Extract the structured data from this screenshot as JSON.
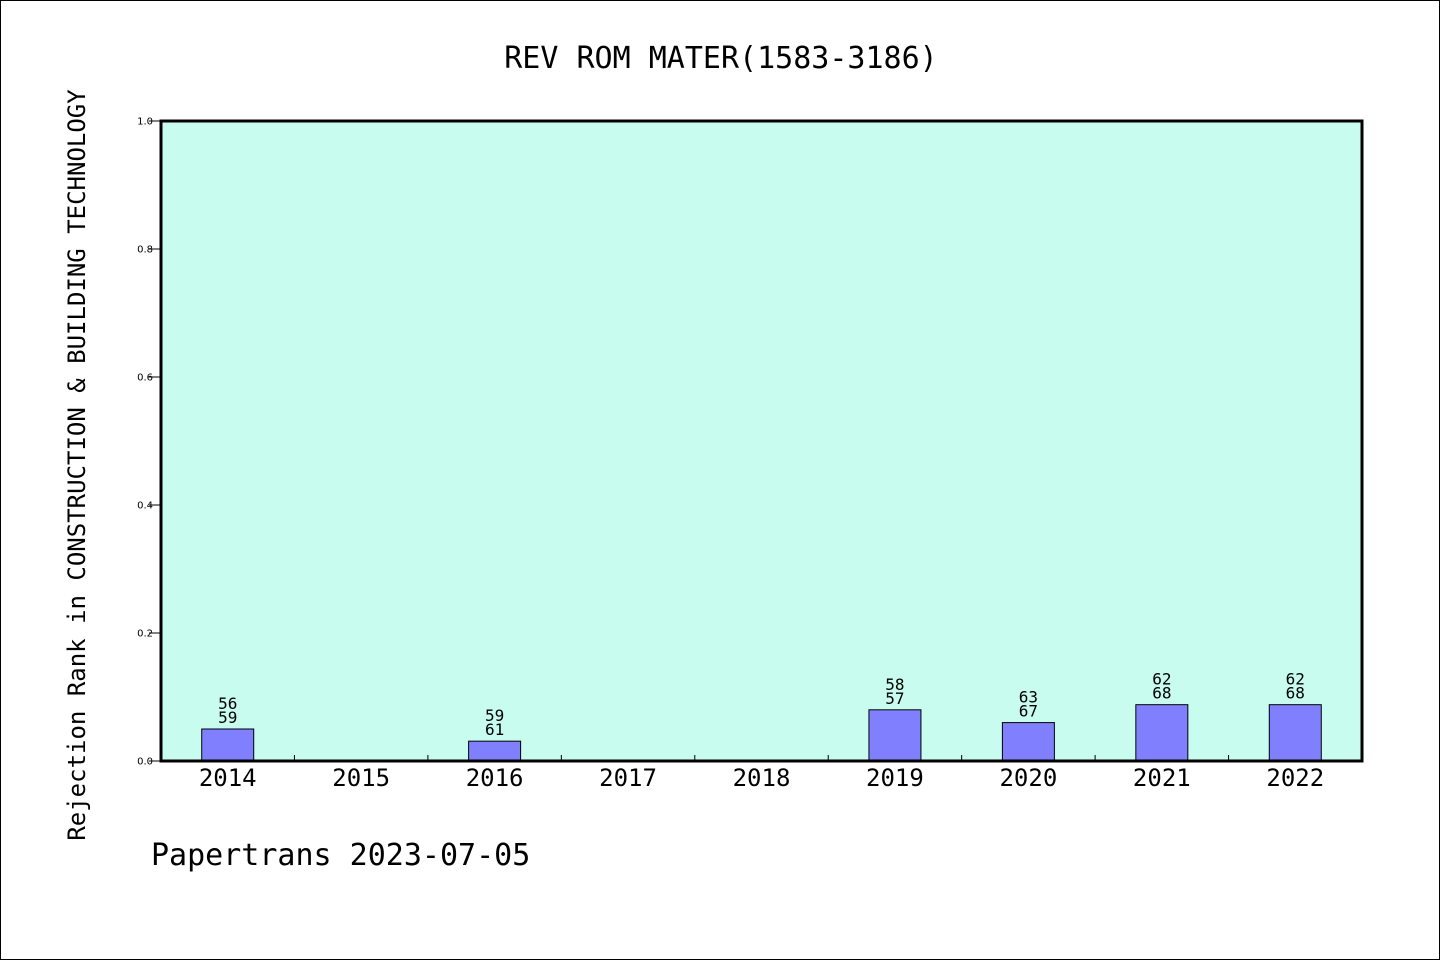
{
  "chart_data": {
    "type": "bar",
    "title": "REV ROM MATER(1583-3186)",
    "ylabel": "Rejection Rank in CONSTRUCTION & BUILDING TECHNOLOGY",
    "xlabel": "",
    "ylim": [
      0,
      1.0
    ],
    "yticks": [
      "0.0",
      "0.2",
      "0.4",
      "0.6",
      "0.8",
      "1.0"
    ],
    "ytick_values": [
      0,
      0.2,
      0.4,
      0.6,
      0.8,
      1.0
    ],
    "grid": false,
    "categories": [
      "2014",
      "2015",
      "2016",
      "2017",
      "2018",
      "2019",
      "2020",
      "2021",
      "2022"
    ],
    "values": [
      0.05,
      null,
      0.031,
      null,
      null,
      0.08,
      0.06,
      0.088,
      0.088
    ],
    "labels": [
      [
        "56",
        "59"
      ],
      null,
      [
        "59",
        "61"
      ],
      null,
      null,
      [
        "58",
        "57"
      ],
      [
        "63",
        "67"
      ],
      [
        "62",
        "68"
      ],
      [
        "62",
        "68"
      ]
    ],
    "colors": {
      "plot_background": "#c8fcef",
      "bar_fill": "#8080ff",
      "bar_stroke": "#000000"
    }
  },
  "footer": {
    "text": "Papertrans 2023-07-05"
  }
}
